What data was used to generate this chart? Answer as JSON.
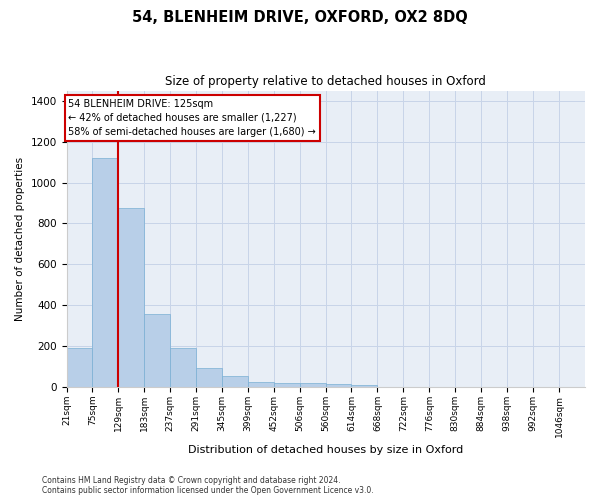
{
  "title": "54, BLENHEIM DRIVE, OXFORD, OX2 8DQ",
  "subtitle": "Size of property relative to detached houses in Oxford",
  "xlabel": "Distribution of detached houses by size in Oxford",
  "ylabel": "Number of detached properties",
  "bar_color": "#b8cfe8",
  "bar_edge_color": "#7aafd4",
  "grid_color": "#c8d4e8",
  "background_color": "#e8eef6",
  "vline_x": 129,
  "vline_color": "#cc0000",
  "annotation_text": "54 BLENHEIM DRIVE: 125sqm\n← 42% of detached houses are smaller (1,227)\n58% of semi-detached houses are larger (1,680) →",
  "annotation_box_edgecolor": "#cc0000",
  "footnote": "Contains HM Land Registry data © Crown copyright and database right 2024.\nContains public sector information licensed under the Open Government Licence v3.0.",
  "bins": [
    21,
    75,
    129,
    183,
    237,
    291,
    345,
    399,
    452,
    506,
    560,
    614,
    668,
    722,
    776,
    830,
    884,
    938,
    992,
    1046,
    1100
  ],
  "counts": [
    190,
    1120,
    875,
    355,
    190,
    95,
    52,
    25,
    22,
    18,
    15,
    10,
    0,
    0,
    0,
    0,
    0,
    0,
    0,
    0
  ],
  "ylim": [
    0,
    1450
  ],
  "yticks": [
    0,
    200,
    400,
    600,
    800,
    1000,
    1200,
    1400
  ],
  "figsize": [
    6.0,
    5.0
  ],
  "dpi": 100
}
